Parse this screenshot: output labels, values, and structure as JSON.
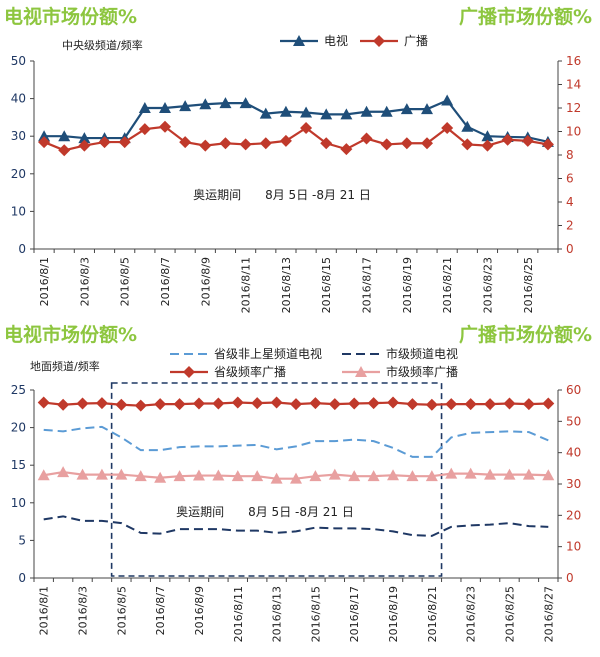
{
  "headings": {
    "left": "电视市场份额%",
    "right": "广播市场份额%"
  },
  "chart_data": [
    {
      "type": "line",
      "subtitle": "中央级频道/频率",
      "title": "",
      "annotation": "奥运期间　　8月 5日 -8月 21 日",
      "categories": [
        "2016/8/1",
        "2016/8/2",
        "2016/8/3",
        "2016/8/4",
        "2016/8/5",
        "2016/8/6",
        "2016/8/7",
        "2016/8/8",
        "2016/8/9",
        "2016/8/10",
        "2016/8/11",
        "2016/8/12",
        "2016/8/13",
        "2016/8/14",
        "2016/8/15",
        "2016/8/16",
        "2016/8/17",
        "2016/8/18",
        "2016/8/19",
        "2016/8/20",
        "2016/8/21",
        "2016/8/22",
        "2016/8/23",
        "2016/8/24",
        "2016/8/25",
        "2016/8/26"
      ],
      "tick_labels": [
        "2016/8/1",
        "2016/8/3",
        "2016/8/5",
        "2016/8/7",
        "2016/8/9",
        "2016/8/11",
        "2016/8/13",
        "2016/8/15",
        "2016/8/17",
        "2016/8/19",
        "2016/8/21",
        "2016/8/23",
        "2016/8/25"
      ],
      "y_left": {
        "min": 0,
        "max": 50,
        "ticks": [
          "0",
          "10",
          "20",
          "30",
          "40",
          "50"
        ]
      },
      "y_right": {
        "min": 0,
        "max": 16,
        "ticks": [
          "0",
          "2",
          "4",
          "6",
          "8",
          "10",
          "12",
          "14",
          "16"
        ]
      },
      "legend_position": "top",
      "grid": false,
      "series": [
        {
          "name": "电视",
          "axis": "left",
          "color": "#1f4e79",
          "marker": "triangle",
          "values": [
            30,
            30,
            29.5,
            29.5,
            29.5,
            37.5,
            37.5,
            38,
            38.5,
            38.8,
            38.8,
            36,
            36.5,
            36.3,
            35.8,
            35.8,
            36.5,
            36.5,
            37.2,
            37.2,
            39.5,
            32.5,
            30,
            29.8,
            29.7,
            28.5
          ]
        },
        {
          "name": "广播",
          "axis": "right",
          "color": "#c0392b",
          "marker": "diamond",
          "values": [
            9.1,
            8.4,
            8.8,
            9.1,
            9.1,
            10.2,
            10.4,
            9.1,
            8.8,
            9.0,
            8.9,
            9.0,
            9.2,
            10.3,
            9.0,
            8.5,
            9.4,
            8.9,
            9.0,
            9.0,
            10.3,
            8.9,
            8.8,
            9.3,
            9.2,
            8.9
          ]
        }
      ]
    },
    {
      "type": "line",
      "subtitle": "地面频道/频率",
      "title": "",
      "annotation": "奥运期间　　8月 5日 -8月 21 日",
      "categories": [
        "2016/8/1",
        "2016/8/2",
        "2016/8/3",
        "2016/8/4",
        "2016/8/5",
        "2016/8/6",
        "2016/8/7",
        "2016/8/8",
        "2016/8/9",
        "2016/8/10",
        "2016/8/11",
        "2016/8/12",
        "2016/8/13",
        "2016/8/14",
        "2016/8/15",
        "2016/8/16",
        "2016/8/17",
        "2016/8/18",
        "2016/8/19",
        "2016/8/20",
        "2016/8/21",
        "2016/8/22",
        "2016/8/23",
        "2016/8/24",
        "2016/8/25",
        "2016/8/26",
        "2016/8/27"
      ],
      "tick_labels": [
        "2016/8/1",
        "2016/8/3",
        "2016/8/5",
        "2016/8/7",
        "2016/8/9",
        "2016/8/11",
        "2016/8/13",
        "2016/8/15",
        "2016/8/17",
        "2016/8/19",
        "2016/8/21",
        "2016/8/23",
        "2016/8/25",
        "2016/8/27"
      ],
      "y_left": {
        "min": 0,
        "max": 25,
        "ticks": [
          "0",
          "5",
          "10",
          "15",
          "20",
          "25"
        ]
      },
      "y_right": {
        "min": 0,
        "max": 60,
        "ticks": [
          "0",
          "10",
          "20",
          "30",
          "40",
          "50",
          "60"
        ]
      },
      "highlight_range": [
        "2016/8/5",
        "2016/8/21"
      ],
      "legend_position": "top",
      "grid": false,
      "series": [
        {
          "name": "省级非上星频道电视",
          "axis": "left",
          "color": "#5b9bd5",
          "style": "dashed",
          "marker": "none",
          "values": [
            19.7,
            19.5,
            19.9,
            20.1,
            18.7,
            17.0,
            17.0,
            17.4,
            17.5,
            17.5,
            17.6,
            17.7,
            17.1,
            17.5,
            18.2,
            18.2,
            18.4,
            18.2,
            17.3,
            16.1,
            16.1,
            18.7,
            19.3,
            19.4,
            19.5,
            19.4,
            18.3
          ]
        },
        {
          "name": "市级频道电视",
          "axis": "left",
          "color": "#1f3864",
          "style": "dashed",
          "marker": "none",
          "values": [
            7.8,
            8.2,
            7.6,
            7.6,
            7.3,
            6.0,
            5.9,
            6.5,
            6.5,
            6.5,
            6.3,
            6.3,
            6.0,
            6.2,
            6.7,
            6.6,
            6.6,
            6.5,
            6.2,
            5.7,
            5.6,
            6.8,
            7.0,
            7.1,
            7.3,
            6.9,
            6.8
          ]
        },
        {
          "name": "省级频率广播",
          "axis": "right",
          "color": "#c0392b",
          "style": "solid",
          "marker": "diamond",
          "values": [
            56.0,
            55.3,
            55.7,
            55.8,
            55.3,
            55.0,
            55.5,
            55.5,
            55.7,
            55.7,
            56.0,
            55.8,
            56.0,
            55.5,
            55.8,
            55.5,
            55.7,
            55.8,
            56.0,
            55.5,
            55.3,
            55.5,
            55.5,
            55.5,
            55.7,
            55.5,
            55.7
          ]
        },
        {
          "name": "市级频率广播",
          "axis": "right",
          "color": "#e8a0a0",
          "style": "solid",
          "marker": "triangle",
          "values": [
            32.8,
            33.8,
            33.0,
            33.0,
            33.0,
            32.5,
            32.0,
            32.5,
            32.7,
            32.7,
            32.5,
            32.5,
            31.7,
            31.7,
            32.5,
            33.0,
            32.5,
            32.5,
            32.8,
            32.5,
            32.5,
            33.3,
            33.3,
            33.0,
            33.0,
            33.0,
            32.8
          ]
        }
      ]
    }
  ]
}
